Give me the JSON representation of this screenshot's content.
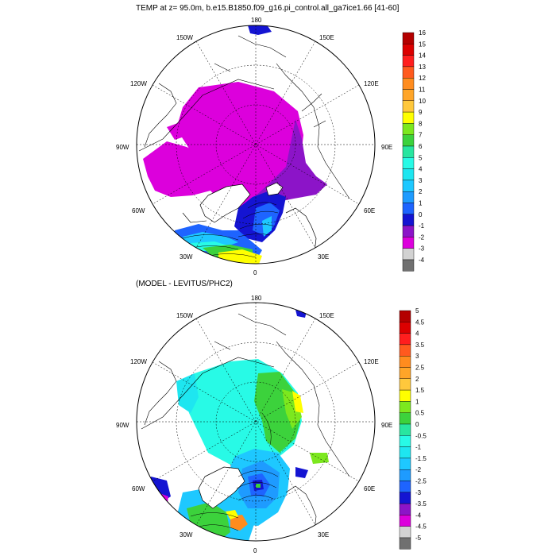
{
  "title": "TEMP at z=  95.0m, b.e15.B1850.f09_g16.pi_control.all_ga7ice1.66 [41-60]",
  "subtitle": "(MODEL - LEVITUS/PHC2)",
  "map": {
    "lon_labels": [
      "180",
      "150E",
      "120E",
      "90E",
      "60E",
      "30E",
      "0",
      "30W",
      "60W",
      "90W",
      "120W",
      "150W"
    ]
  },
  "colorbar_top": {
    "labels": [
      "16",
      "15",
      "14",
      "13",
      "12",
      "11",
      "10",
      "9",
      "8",
      "7",
      "6",
      "5",
      "4",
      "3",
      "2",
      "1",
      "0",
      "-1",
      "-2",
      "-3",
      "-4"
    ],
    "colors": [
      "#b40000",
      "#dc0000",
      "#ff1e1e",
      "#ff5a1e",
      "#ff8c1e",
      "#ffa528",
      "#ffc83c",
      "#ffff00",
      "#7ce81e",
      "#3cd23c",
      "#28e6a0",
      "#28fae6",
      "#1ee6f0",
      "#1ec8ff",
      "#1e9bff",
      "#1e64ff",
      "#1414d2",
      "#8c14c8",
      "#dc00dc",
      "#d2d2d2",
      "#707070"
    ]
  },
  "colorbar_bottom": {
    "labels": [
      "5",
      "4.5",
      "4",
      "3.5",
      "3",
      "2.5",
      "2",
      "1.5",
      "1",
      "0.5",
      "0",
      "-0.5",
      "-1",
      "-1.5",
      "-2",
      "-2.5",
      "-3",
      "-3.5",
      "-4",
      "-4.5",
      "-5"
    ],
    "colors": [
      "#b40000",
      "#dc0000",
      "#ff1e1e",
      "#ff5a1e",
      "#ff8c1e",
      "#ffa528",
      "#ffc83c",
      "#ffff00",
      "#7ce81e",
      "#3cd23c",
      "#28e6a0",
      "#28fae6",
      "#1ee6f0",
      "#1ec8ff",
      "#1e9bff",
      "#1e64ff",
      "#1414d2",
      "#8c14c8",
      "#dc00dc",
      "#d2d2d2",
      "#707070"
    ]
  }
}
